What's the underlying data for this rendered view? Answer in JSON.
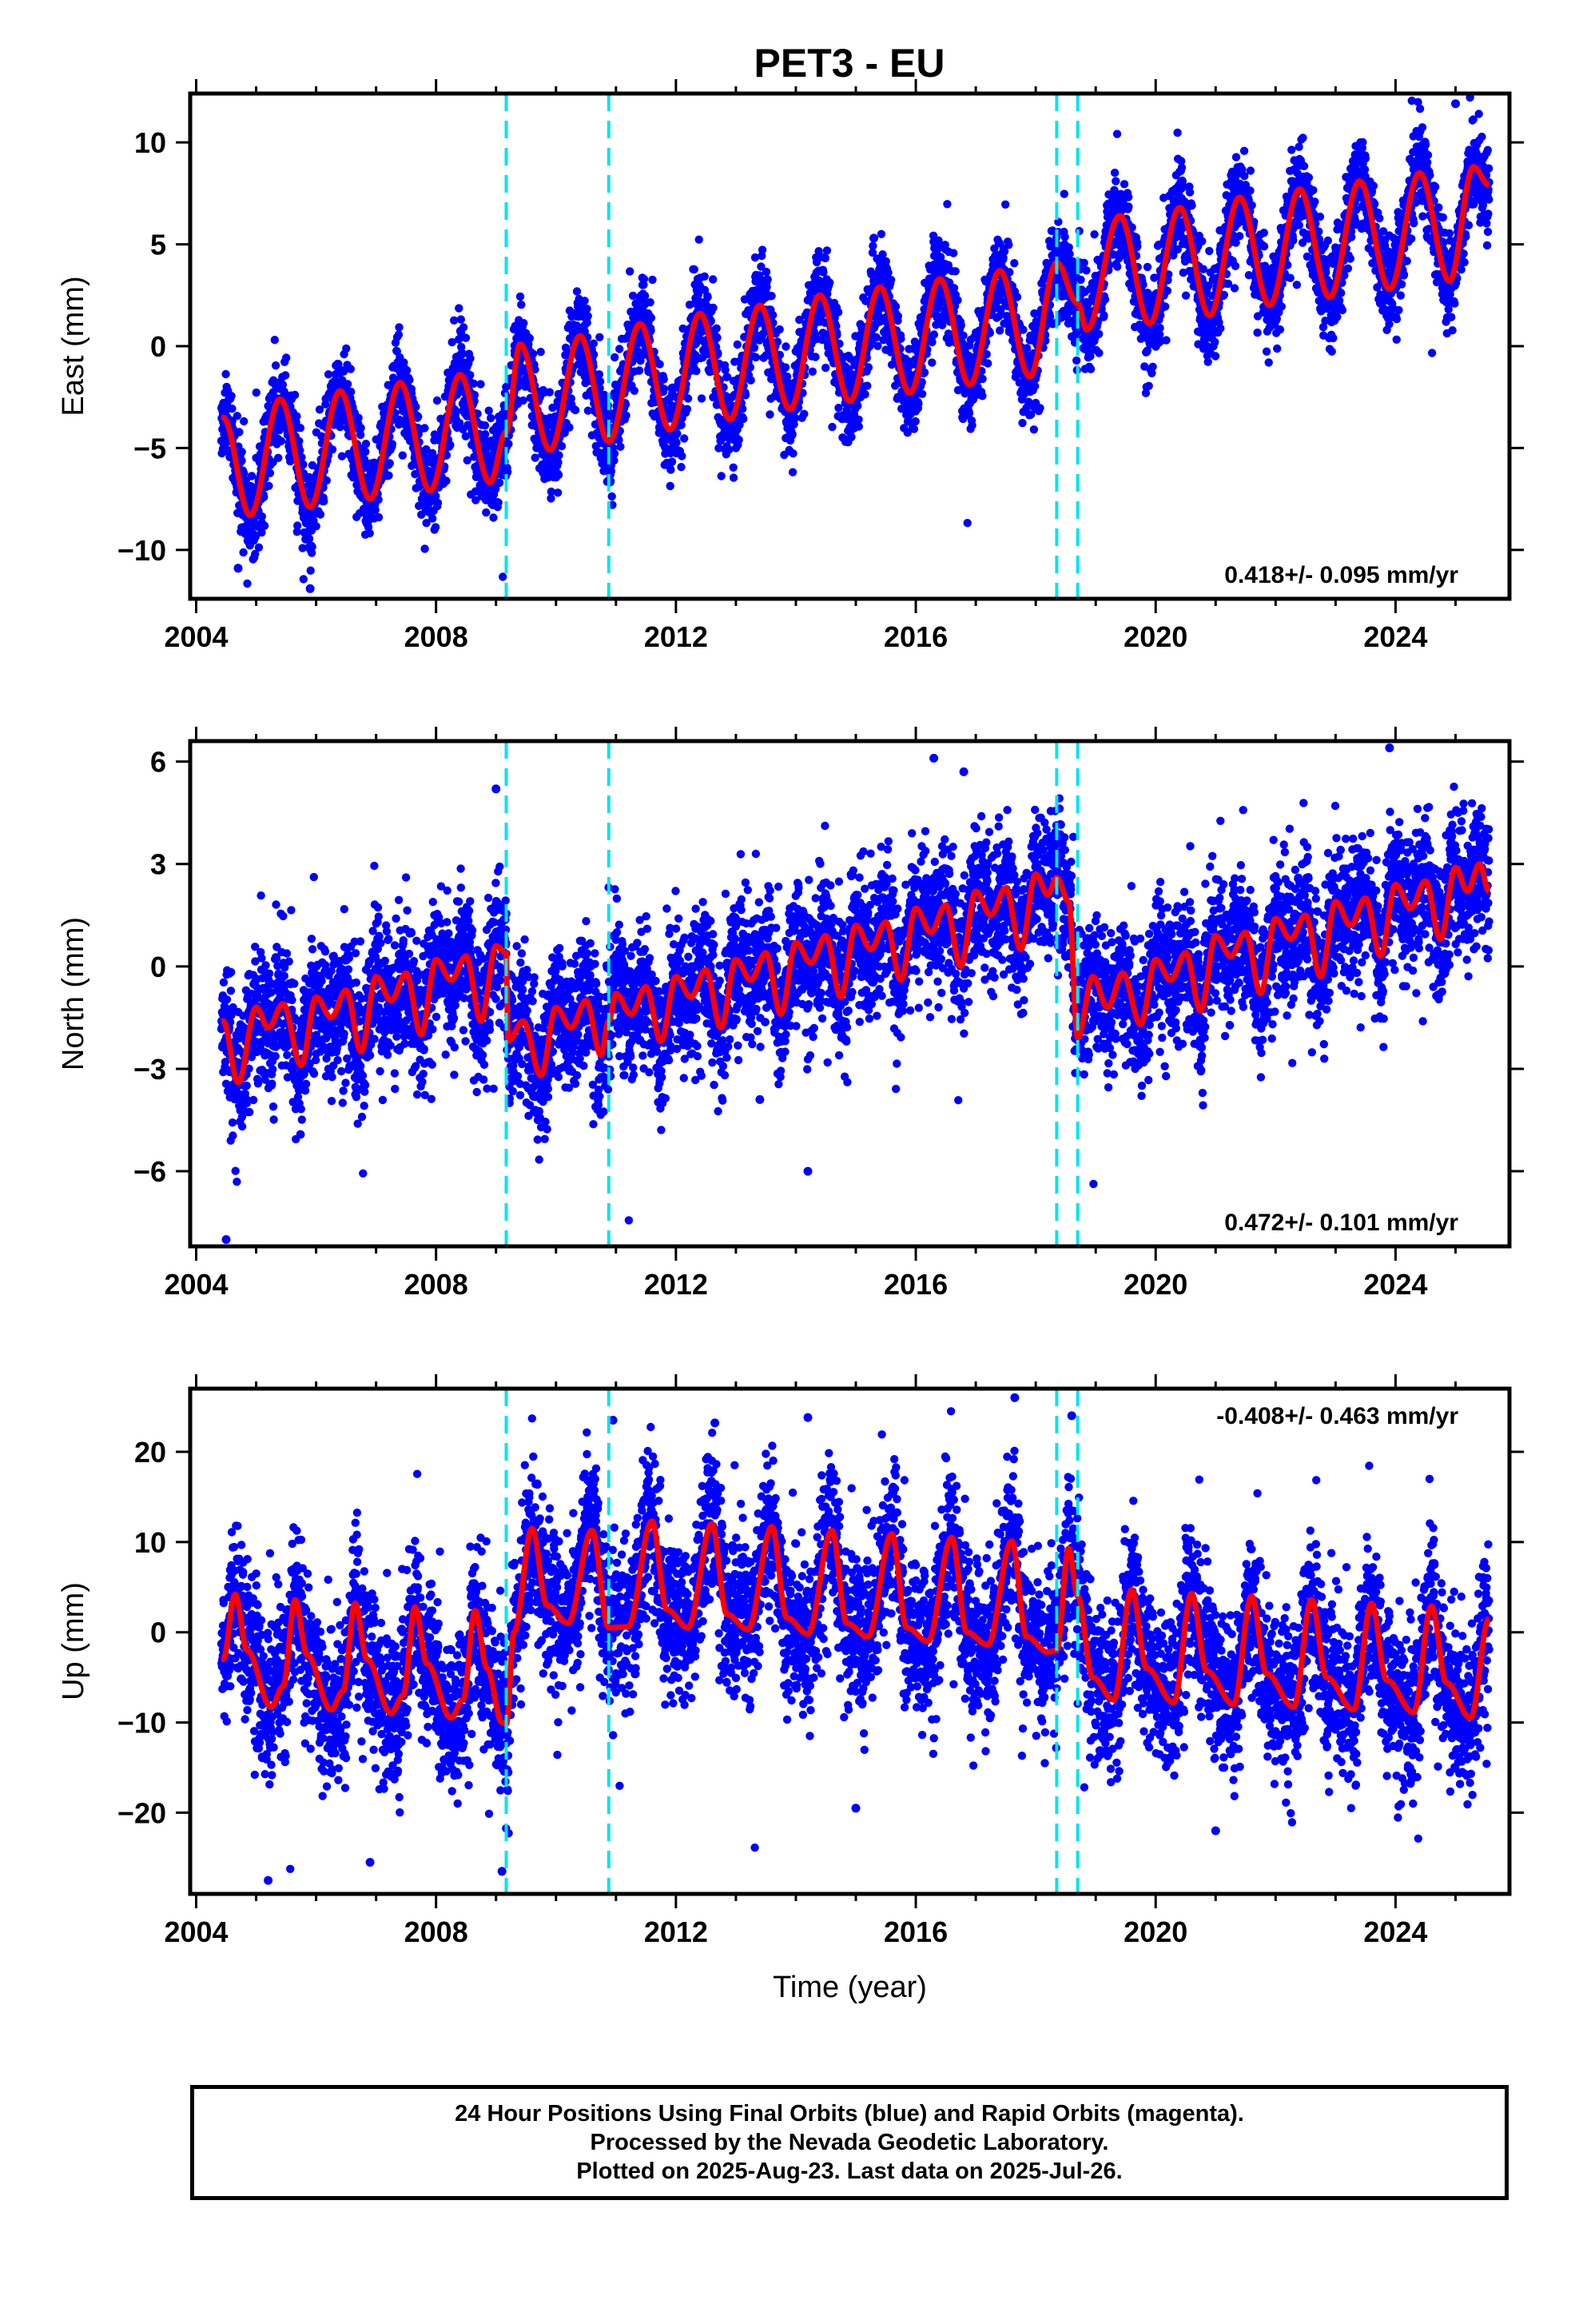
{
  "title": "PET3 - EU",
  "colors": {
    "points": "#0000ff",
    "fit": "#ff0000",
    "breaks": "#00e5ee",
    "axes": "#000000"
  },
  "footer": {
    "line1": "24 Hour Positions Using Final Orbits (blue) and Rapid Orbits (magenta).",
    "line2": "Processed by the Nevada Geodetic Laboratory.",
    "line3": "Plotted on 2025-Aug-23. Last data on 2025-Jul-26."
  },
  "chart_data": [
    {
      "type": "scatter",
      "component": "east",
      "ylabel": "East (mm)",
      "xlabel": "",
      "xlim": [
        2003.9,
        2025.9
      ],
      "ylim": [
        -12.4,
        12.4
      ],
      "xticks": [
        2004,
        2008,
        2012,
        2016,
        2020,
        2024
      ],
      "xtick_labels": [
        "2004",
        "2008",
        "2012",
        "2016",
        "2020",
        "2024"
      ],
      "yticks": [
        -10,
        -5,
        0,
        5,
        10
      ],
      "ytick_labels": [
        "−10",
        "−5",
        "0",
        "5",
        "10"
      ],
      "annotation": "0.418+/- 0.095 mm/yr",
      "annotation_position": "bottom-right",
      "data_start": 2004.42,
      "data_end": 2025.56,
      "breaks": [
        2009.17,
        2010.88,
        2018.35,
        2018.7
      ],
      "fit_points": [
        [
          2004.45,
          -3.5
        ],
        [
          2004.9,
          -8.3
        ],
        [
          2005.4,
          -2.6
        ],
        [
          2005.9,
          -7.9
        ],
        [
          2006.4,
          -2.2
        ],
        [
          2006.9,
          -7.5
        ],
        [
          2007.4,
          -1.8
        ],
        [
          2007.9,
          -7.1
        ],
        [
          2008.4,
          -1.4
        ],
        [
          2008.9,
          -6.7
        ],
        [
          2009.17,
          -4.2
        ],
        [
          2009.4,
          0.1
        ],
        [
          2009.9,
          -5.1
        ],
        [
          2010.4,
          0.5
        ],
        [
          2010.88,
          -4.7
        ],
        [
          2011.4,
          1.1
        ],
        [
          2011.9,
          -4.1
        ],
        [
          2012.4,
          1.6
        ],
        [
          2012.9,
          -3.6
        ],
        [
          2013.4,
          2.0
        ],
        [
          2013.9,
          -3.1
        ],
        [
          2014.4,
          2.5
        ],
        [
          2014.9,
          -2.7
        ],
        [
          2015.4,
          2.9
        ],
        [
          2015.9,
          -2.3
        ],
        [
          2016.4,
          3.3
        ],
        [
          2016.9,
          -1.9
        ],
        [
          2017.4,
          3.7
        ],
        [
          2017.9,
          -1.5
        ],
        [
          2018.35,
          4.1
        ],
        [
          2018.7,
          2.1
        ],
        [
          2018.85,
          0.8
        ],
        [
          2019.4,
          6.4
        ],
        [
          2019.9,
          1.1
        ],
        [
          2020.4,
          6.8
        ],
        [
          2020.9,
          1.5
        ],
        [
          2021.4,
          7.3
        ],
        [
          2021.9,
          2.0
        ],
        [
          2022.4,
          7.7
        ],
        [
          2022.9,
          2.4
        ],
        [
          2023.4,
          8.1
        ],
        [
          2023.9,
          2.8
        ],
        [
          2024.4,
          8.5
        ],
        [
          2024.9,
          3.2
        ],
        [
          2025.3,
          8.8
        ],
        [
          2025.56,
          7.9
        ]
      ],
      "scatter_spread": 1.3,
      "outliers": [
        [
          2005.9,
          -11.9
        ],
        [
          2004.7,
          -10.9
        ],
        [
          2025.0,
          11.9
        ],
        [
          2015.3,
          5.3
        ]
      ]
    },
    {
      "type": "scatter",
      "component": "north",
      "ylabel": "North (mm)",
      "xlabel": "",
      "xlim": [
        2003.9,
        2025.9
      ],
      "ylim": [
        -8.2,
        6.6
      ],
      "xticks": [
        2004,
        2008,
        2012,
        2016,
        2020,
        2024
      ],
      "xtick_labels": [
        "2004",
        "2008",
        "2012",
        "2016",
        "2020",
        "2024"
      ],
      "yticks": [
        -6,
        -3,
        0,
        3,
        6
      ],
      "ytick_labels": [
        "−6",
        "−3",
        "0",
        "3",
        "6"
      ],
      "annotation": "0.472+/- 0.101 mm/yr",
      "annotation_position": "bottom-right",
      "data_start": 2004.42,
      "data_end": 2025.56,
      "breaks": [
        2009.17,
        2010.88,
        2018.35,
        2018.7
      ],
      "fit_points": [
        [
          2004.45,
          -1.6
        ],
        [
          2004.7,
          -3.4
        ],
        [
          2005.0,
          -1.2
        ],
        [
          2005.2,
          -1.8
        ],
        [
          2005.45,
          -1.1
        ],
        [
          2005.75,
          -2.9
        ],
        [
          2006.0,
          -0.9
        ],
        [
          2006.25,
          -1.5
        ],
        [
          2006.5,
          -0.7
        ],
        [
          2006.75,
          -2.5
        ],
        [
          2007.0,
          -0.3
        ],
        [
          2007.25,
          -1.0
        ],
        [
          2007.5,
          -0.2
        ],
        [
          2007.75,
          -2.0
        ],
        [
          2008.0,
          0.2
        ],
        [
          2008.25,
          -0.4
        ],
        [
          2008.5,
          0.3
        ],
        [
          2008.75,
          -1.6
        ],
        [
          2009.0,
          0.6
        ],
        [
          2009.17,
          0.4
        ],
        [
          2009.2,
          -2.2
        ],
        [
          2009.45,
          -1.6
        ],
        [
          2009.75,
          -3.2
        ],
        [
          2010.0,
          -1.2
        ],
        [
          2010.25,
          -1.8
        ],
        [
          2010.5,
          -1.0
        ],
        [
          2010.75,
          -2.6
        ],
        [
          2010.88,
          -1.6
        ],
        [
          2011.0,
          -0.8
        ],
        [
          2011.25,
          -1.4
        ],
        [
          2011.5,
          -0.6
        ],
        [
          2011.75,
          -2.2
        ],
        [
          2012.0,
          -0.3
        ],
        [
          2012.25,
          -0.9
        ],
        [
          2012.5,
          -0.1
        ],
        [
          2012.75,
          -1.8
        ],
        [
          2013.0,
          0.2
        ],
        [
          2013.25,
          -0.4
        ],
        [
          2013.5,
          0.4
        ],
        [
          2013.75,
          -1.4
        ],
        [
          2014.0,
          0.7
        ],
        [
          2014.25,
          0.1
        ],
        [
          2014.5,
          0.9
        ],
        [
          2014.75,
          -0.9
        ],
        [
          2015.0,
          1.2
        ],
        [
          2015.25,
          0.5
        ],
        [
          2015.5,
          1.3
        ],
        [
          2015.75,
          -0.4
        ],
        [
          2016.0,
          1.7
        ],
        [
          2016.25,
          1.0
        ],
        [
          2016.5,
          1.8
        ],
        [
          2016.75,
          0.0
        ],
        [
          2017.0,
          2.2
        ],
        [
          2017.25,
          1.5
        ],
        [
          2017.5,
          2.3
        ],
        [
          2017.75,
          0.5
        ],
        [
          2018.0,
          2.7
        ],
        [
          2018.2,
          2.1
        ],
        [
          2018.35,
          2.6
        ],
        [
          2018.55,
          1.9
        ],
        [
          2018.7,
          -2.1
        ],
        [
          2018.95,
          -0.3
        ],
        [
          2019.2,
          -1.2
        ],
        [
          2019.45,
          -0.2
        ],
        [
          2019.75,
          -1.7
        ],
        [
          2020.0,
          0.2
        ],
        [
          2020.25,
          -0.4
        ],
        [
          2020.5,
          0.4
        ],
        [
          2020.75,
          -1.3
        ],
        [
          2021.0,
          0.9
        ],
        [
          2021.25,
          0.3
        ],
        [
          2021.5,
          1.0
        ],
        [
          2021.75,
          -0.8
        ],
        [
          2022.0,
          1.4
        ],
        [
          2022.25,
          0.8
        ],
        [
          2022.5,
          1.5
        ],
        [
          2022.75,
          -0.3
        ],
        [
          2023.0,
          1.9
        ],
        [
          2023.25,
          1.2
        ],
        [
          2023.5,
          2.0
        ],
        [
          2023.75,
          0.3
        ],
        [
          2024.0,
          2.4
        ],
        [
          2024.25,
          1.7
        ],
        [
          2024.5,
          2.5
        ],
        [
          2024.75,
          0.8
        ],
        [
          2025.0,
          2.9
        ],
        [
          2025.2,
          2.2
        ],
        [
          2025.4,
          3.0
        ],
        [
          2025.56,
          2.2
        ]
      ],
      "scatter_spread": 1.15,
      "outliers": [
        [
          2004.5,
          -8.0
        ],
        [
          2014.2,
          -6.0
        ],
        [
          2016.3,
          6.1
        ],
        [
          2016.8,
          5.7
        ],
        [
          2023.9,
          6.4
        ],
        [
          2009.0,
          5.2
        ],
        [
          2013.4,
          -3.9
        ]
      ]
    },
    {
      "type": "scatter",
      "component": "up",
      "ylabel": "Up (mm)",
      "xlabel": "Time (year)",
      "xlim": [
        2003.9,
        2025.9
      ],
      "ylim": [
        -29,
        27
      ],
      "xticks": [
        2004,
        2008,
        2012,
        2016,
        2020,
        2024
      ],
      "xtick_labels": [
        "2004",
        "2008",
        "2012",
        "2016",
        "2020",
        "2024"
      ],
      "yticks": [
        -20,
        -10,
        0,
        10,
        20
      ],
      "ytick_labels": [
        "−20",
        "−10",
        "0",
        "10",
        "20"
      ],
      "annotation": "-0.408+/- 0.463 mm/yr",
      "annotation_position": "top-right",
      "data_start": 2004.42,
      "data_end": 2025.56,
      "breaks": [
        2009.17,
        2010.88,
        2018.35,
        2018.7
      ],
      "fit_points": [
        [
          2004.45,
          -3.0
        ],
        [
          2004.65,
          4.2
        ],
        [
          2004.85,
          -2.0
        ],
        [
          2005.25,
          -8.3
        ],
        [
          2005.45,
          -6.0
        ],
        [
          2005.65,
          3.6
        ],
        [
          2005.85,
          -2.5
        ],
        [
          2006.25,
          -8.6
        ],
        [
          2006.45,
          -6.5
        ],
        [
          2006.65,
          3.2
        ],
        [
          2006.85,
          -3.0
        ],
        [
          2007.25,
          -9.0
        ],
        [
          2007.45,
          -7.0
        ],
        [
          2007.65,
          2.8
        ],
        [
          2007.85,
          -3.5
        ],
        [
          2008.25,
          -9.5
        ],
        [
          2008.45,
          -7.5
        ],
        [
          2008.65,
          2.4
        ],
        [
          2008.85,
          -4.0
        ],
        [
          2009.1,
          -10.0
        ],
        [
          2009.17,
          -10.2
        ],
        [
          2009.3,
          0.0
        ],
        [
          2009.6,
          11.5
        ],
        [
          2009.85,
          3.0
        ],
        [
          2010.2,
          1.0
        ],
        [
          2010.6,
          11.3
        ],
        [
          2010.88,
          0.5
        ],
        [
          2011.2,
          0.6
        ],
        [
          2011.6,
          12.3
        ],
        [
          2011.85,
          2.5
        ],
        [
          2012.2,
          0.5
        ],
        [
          2012.6,
          12.0
        ],
        [
          2012.85,
          2.0
        ],
        [
          2013.2,
          0.3
        ],
        [
          2013.6,
          11.7
        ],
        [
          2013.85,
          1.6
        ],
        [
          2014.2,
          -0.2
        ],
        [
          2014.6,
          11.3
        ],
        [
          2014.85,
          1.0
        ],
        [
          2015.2,
          -0.5
        ],
        [
          2015.6,
          10.9
        ],
        [
          2015.85,
          0.5
        ],
        [
          2016.2,
          -1.0
        ],
        [
          2016.6,
          10.5
        ],
        [
          2016.85,
          0.0
        ],
        [
          2017.2,
          -1.4
        ],
        [
          2017.6,
          10.1
        ],
        [
          2017.85,
          -0.5
        ],
        [
          2018.2,
          -2.2
        ],
        [
          2018.35,
          -2.0
        ],
        [
          2018.55,
          9.3
        ],
        [
          2018.7,
          4.0
        ],
        [
          2018.95,
          -5.0
        ],
        [
          2019.3,
          -7.5
        ],
        [
          2019.6,
          4.7
        ],
        [
          2019.85,
          -4.0
        ],
        [
          2020.3,
          -7.8
        ],
        [
          2020.6,
          4.3
        ],
        [
          2020.85,
          -4.3
        ],
        [
          2021.3,
          -8.0
        ],
        [
          2021.6,
          4.0
        ],
        [
          2021.85,
          -4.6
        ],
        [
          2022.3,
          -8.3
        ],
        [
          2022.6,
          3.6
        ],
        [
          2022.85,
          -5.0
        ],
        [
          2023.3,
          -8.6
        ],
        [
          2023.6,
          3.2
        ],
        [
          2023.85,
          -5.3
        ],
        [
          2024.3,
          -8.9
        ],
        [
          2024.6,
          2.9
        ],
        [
          2024.85,
          -5.6
        ],
        [
          2025.25,
          -9.5
        ],
        [
          2025.56,
          1.5
        ]
      ],
      "scatter_spread": 5.0,
      "outliers": [
        [
          2005.2,
          -27.5
        ],
        [
          2009.1,
          -26.5
        ],
        [
          2017.65,
          26.0
        ],
        [
          2018.6,
          24.0
        ],
        [
          2014.2,
          23.8
        ],
        [
          2012.65,
          23.2
        ],
        [
          2010.95,
          23.5
        ],
        [
          2006.9,
          -25.5
        ],
        [
          2015.0,
          -19.5
        ],
        [
          2021.0,
          -22.0
        ]
      ]
    }
  ]
}
